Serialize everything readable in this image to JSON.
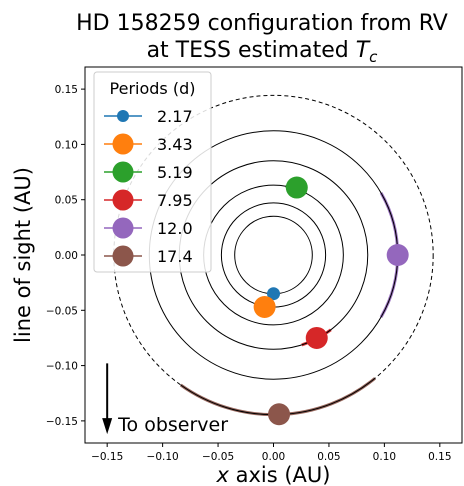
{
  "chart_data": {
    "type": "scatter",
    "title_line1": "HD 158259 configuration from RV",
    "title_line2_prefix": "at TESS estimated ",
    "title_line2_symbol": "T",
    "title_line2_subscript": "c",
    "xlabel_italic": "x",
    "xlabel_rest": " axis (AU)",
    "ylabel": "line of sight (AU)",
    "xlim": [
      -0.17,
      0.17
    ],
    "ylim": [
      -0.17,
      0.17
    ],
    "xticks": [
      "−0.15",
      "−0.10",
      "−0.05",
      "0.00",
      "0.05",
      "0.10",
      "0.15"
    ],
    "xtick_values": [
      -0.15,
      -0.1,
      -0.05,
      0.0,
      0.05,
      0.1,
      0.15
    ],
    "yticks": [
      "0.15",
      "0.10",
      "0.05",
      "0.00",
      "−0.05",
      "−0.10",
      "−0.15"
    ],
    "ytick_values": [
      0.15,
      0.1,
      0.05,
      0.0,
      -0.05,
      -0.1,
      -0.15
    ],
    "legend_title": "Periods (d)",
    "legend_position": "upper-left",
    "series": [
      {
        "name": "2.17",
        "color": "#1f77b4",
        "radius_au": 0.035,
        "x": 0.0,
        "y": -0.035,
        "size": "small",
        "arc_deg": 10
      },
      {
        "name": "3.43",
        "color": "#ff7f0e",
        "radius_au": 0.047,
        "x": -0.008,
        "y": -0.047,
        "size": "large",
        "arc_deg": 14
      },
      {
        "name": "5.19",
        "color": "#2ca02c",
        "radius_au": 0.063,
        "x": 0.021,
        "y": 0.061,
        "size": "large",
        "arc_deg": 18
      },
      {
        "name": "7.95",
        "color": "#d62728",
        "radius_au": 0.085,
        "x": 0.039,
        "y": -0.075,
        "size": "large",
        "arc_deg": 20
      },
      {
        "name": "12.0",
        "color": "#9467bd",
        "radius_au": 0.112,
        "x": 0.112,
        "y": 0.0,
        "size": "large",
        "arc_deg": 60
      },
      {
        "name": "17.4",
        "color": "#8c564b",
        "radius_au": 0.144,
        "x": 0.005,
        "y": -0.144,
        "size": "large",
        "arc_deg": 75
      }
    ],
    "outer_dashed_radius_au": 0.144,
    "annotation": "To observer",
    "arrow_from": [
      -0.15,
      -0.098
    ],
    "arrow_to": [
      -0.15,
      -0.162
    ]
  }
}
